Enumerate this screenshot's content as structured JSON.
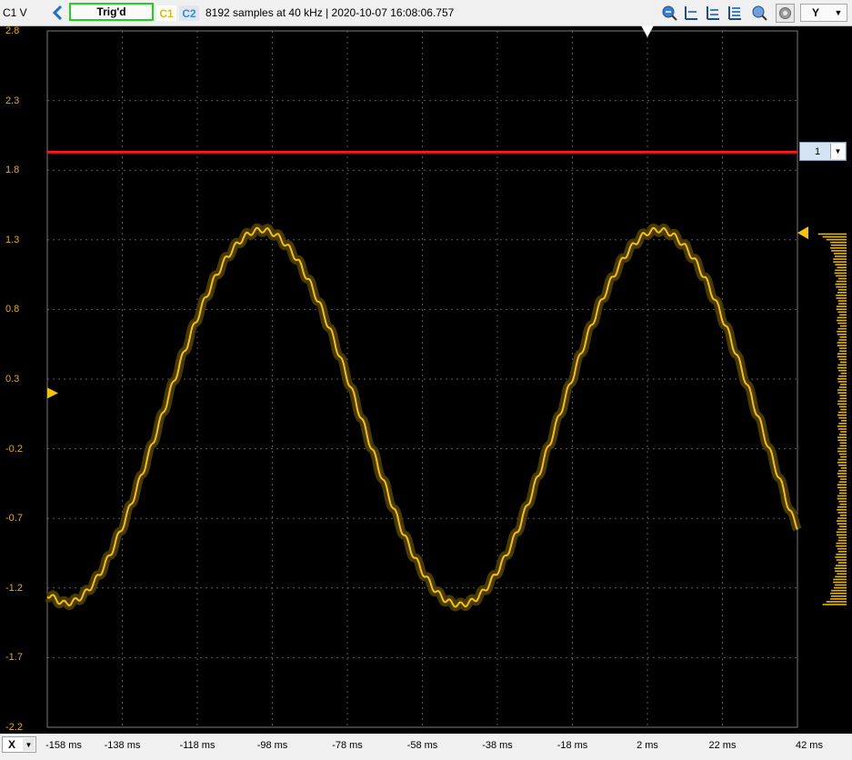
{
  "toolbar": {
    "channel_label": "C1 V",
    "trigger_status": "Trig'd",
    "c1_label": "C1",
    "c2_label": "C2",
    "info": "8192 samples at 40 kHz | 2020-10-07 16:08:06.757",
    "y_axis_select": "Y",
    "icons": [
      "back-arrow-icon",
      "zoom-fit-icon",
      "cursor-add-icon",
      "cursor-list-icon",
      "cursor-settings-icon",
      "zoom-icon",
      "settings-icon"
    ]
  },
  "reference_level_select": "1",
  "x_axis_select": "X",
  "colors": {
    "trace": "#f4c400",
    "trace_band": "#4a3a00",
    "reference_line": "#ff1a1a",
    "grid": "#5a5a5a",
    "axis_text": "#e0b000"
  },
  "chart_data": {
    "type": "line",
    "xlabel": "",
    "ylabel": "C1 V",
    "xlim": [
      -158,
      42
    ],
    "ylim": [
      -2.2,
      2.8
    ],
    "y_ticks": [
      "2.8",
      "2.3",
      "1.8",
      "1.3",
      "0.8",
      "0.3",
      "-0.2",
      "-0.7",
      "-1.2",
      "-1.7",
      "-2.2"
    ],
    "x_ticks": [
      "-158 ms",
      "-138 ms",
      "-118 ms",
      "-98 ms",
      "-78 ms",
      "-58 ms",
      "-38 ms",
      "-18 ms",
      "2 ms",
      "22 ms",
      "42 ms"
    ],
    "reference_level": 1.93,
    "trigger_level": 0.2,
    "trigger_time": 2,
    "series": [
      {
        "x": [
          -158,
          -153,
          -148,
          -143,
          -138,
          -133,
          -128,
          -123,
          -118,
          -113,
          -108,
          -103,
          -98,
          -93,
          -88,
          -83,
          -78,
          -73,
          -68,
          -63,
          -58,
          -53,
          -48,
          -43,
          -38,
          -33,
          -28,
          -23,
          -18,
          -13,
          -8,
          -3,
          2,
          7,
          12,
          17,
          22,
          27,
          32,
          37,
          42
        ],
        "values": [
          -1.25,
          -1.31,
          -1.24,
          -1.05,
          -0.76,
          -0.4,
          -0.01,
          0.38,
          0.74,
          1.04,
          1.25,
          1.36,
          1.35,
          1.22,
          0.99,
          0.68,
          0.31,
          -0.08,
          -0.46,
          -0.81,
          -1.08,
          -1.26,
          -1.32,
          -1.26,
          -1.08,
          -0.81,
          -0.46,
          -0.08,
          0.31,
          0.68,
          0.99,
          1.22,
          1.35,
          1.36,
          1.25,
          1.04,
          0.74,
          0.38,
          -0.01,
          -0.4,
          -0.76
        ]
      }
    ],
    "grid": true
  }
}
